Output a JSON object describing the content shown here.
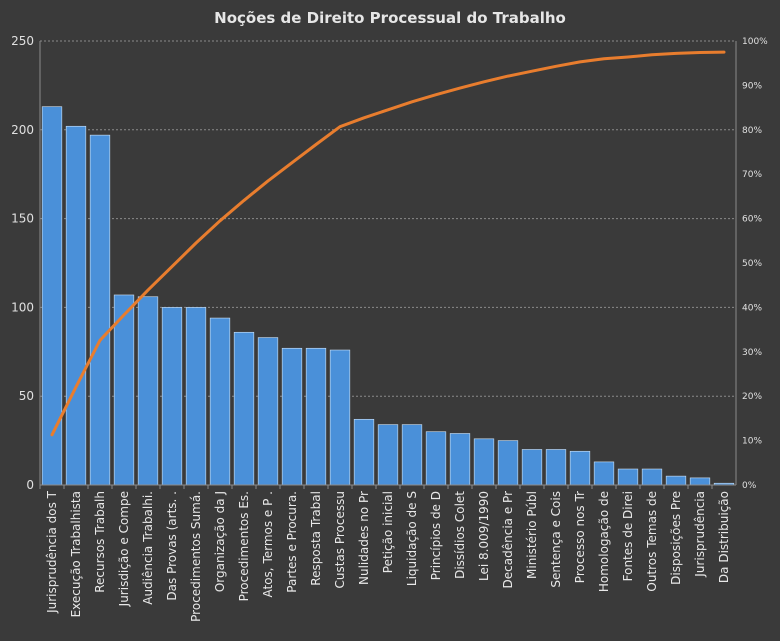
{
  "chart_data": {
    "type": "bar",
    "title": "Noções de Direito  Processual do Trabalho",
    "categories": [
      "Jurisprudência dos T",
      "Execução Trabalhista",
      "Recursos Trabalh",
      "Jurisdição e Compe",
      "Audiência Trabalhi.",
      "Das Provas (arts. .",
      "Procedimentos Sumá.",
      "Organização da J",
      "Procedimentos Es.",
      "Atos, Termos e P .",
      "Partes e Procura.",
      "Resposta Trabal",
      "Custas Processu",
      "Nulidades no Pr",
      "Petição inicial",
      "Liquidação de S",
      "Princípios de D",
      "Dissídios Colet",
      "Lei 8.009/1990",
      "Decadência e Pr",
      "Ministério Públ",
      "Sentença e Cois",
      "Processo nos Tr",
      "Homologação de",
      "Fontes de Direi",
      "Outros Temas de",
      "Disposições Pre",
      "Jurisprudência",
      "Da Distribuição"
    ],
    "series": [
      {
        "type": "bar",
        "axis": "left",
        "color": "#4a90d9",
        "values": [
          213,
          202,
          197,
          107,
          106,
          100,
          100,
          94,
          86,
          83,
          77,
          77,
          76,
          37,
          34,
          34,
          30,
          29,
          26,
          25,
          20,
          20,
          19,
          13,
          9,
          9,
          5,
          4,
          1
        ]
      },
      {
        "type": "line",
        "axis": "right",
        "color": "#e87d2e",
        "values": [
          11.3,
          22.1,
          32.6,
          38.3,
          43.9,
          49.2,
          54.5,
          59.5,
          64.1,
          68.5,
          72.6,
          76.7,
          80.7,
          82.7,
          84.5,
          86.3,
          87.9,
          89.4,
          90.8,
          92.1,
          93.2,
          94.3,
          95.3,
          96.0,
          96.4,
          96.9,
          97.2,
          97.4,
          97.5
        ]
      }
    ],
    "y_left": {
      "min": 0,
      "max": 250,
      "ticks": [
        "0",
        "50",
        "100",
        "150",
        "200",
        "250"
      ]
    },
    "y_right": {
      "min": 0,
      "max": 100,
      "ticks": [
        "0%",
        "10%",
        "20%",
        "30%",
        "40%",
        "50%",
        "60%",
        "70%",
        "80%",
        "90%",
        "100%"
      ]
    },
    "grid": true,
    "legend": "none",
    "colors": {
      "background": "#3a3a3a",
      "bar": "#4a90d9",
      "line": "#e87d2e",
      "grid": "#8a8a8a",
      "text": "#e6e6e6"
    }
  }
}
